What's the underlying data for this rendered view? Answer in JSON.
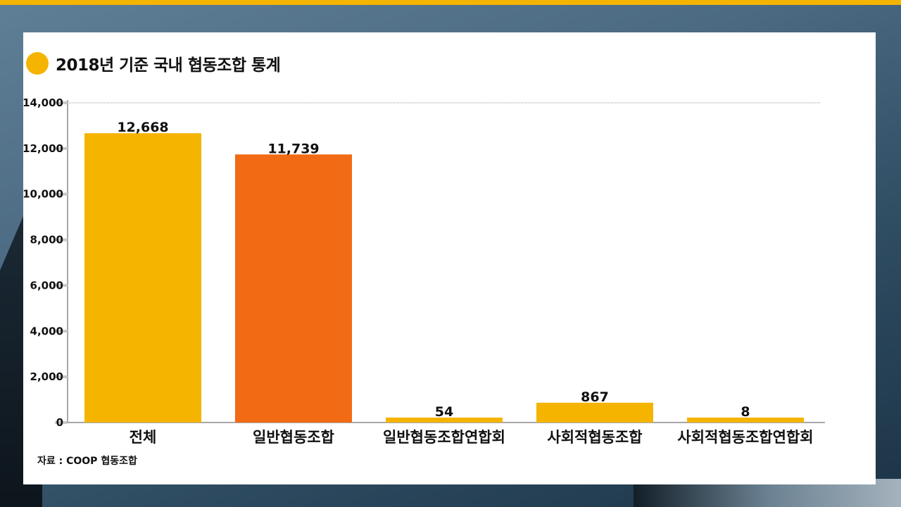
{
  "title": "2018년 기준 국내 협동조합 통계",
  "source": "자료 : COOP 협동조합",
  "colors": {
    "accent": "#f5b400",
    "highlight": "#f26a14"
  },
  "chart_data": {
    "type": "bar",
    "categories": [
      "전체",
      "일반협동조합",
      "일반협동조합연합회",
      "사회적협동조합",
      "사회적협동조합연합회"
    ],
    "values": [
      12668,
      11739,
      54,
      867,
      8
    ],
    "value_labels": [
      "12,668",
      "11,739",
      "54",
      "867",
      "8"
    ],
    "bar_colors": [
      "#f5b400",
      "#f26a14",
      "#f5b400",
      "#f5b400",
      "#f5b400"
    ],
    "ylim": [
      0,
      14000
    ],
    "yticks": [
      0,
      2000,
      4000,
      6000,
      8000,
      10000,
      12000,
      14000
    ],
    "ytick_labels": [
      "0",
      "2,000",
      "4,000",
      "6,000",
      "8,000",
      "10,000",
      "12,000",
      "14,000"
    ],
    "grid": "top-line-only"
  }
}
